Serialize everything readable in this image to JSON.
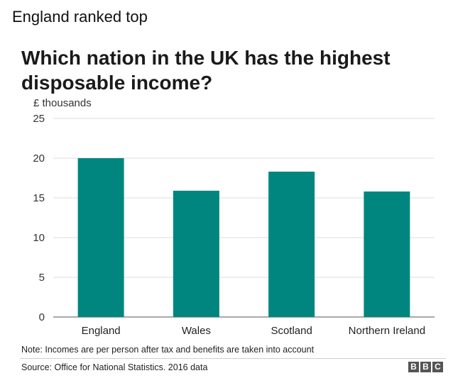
{
  "caption": "England ranked top",
  "chart_data": {
    "type": "bar",
    "title": "Which nation in the UK has the highest disposable income?",
    "ylabel": "£ thousands",
    "xlabel": "",
    "categories": [
      "England",
      "Wales",
      "Scotland",
      "Northern Ireland"
    ],
    "values": [
      20.0,
      15.9,
      18.3,
      15.8
    ],
    "ylim": [
      0,
      25
    ],
    "yticks": [
      "0",
      "5",
      "10",
      "15",
      "20",
      "25"
    ],
    "grid": true,
    "bar_color": "#00867f"
  },
  "note": "Note: Incomes are per person after tax and benefits are taken into account",
  "source": "Source: Office for National Statistics. 2016 data",
  "logo": {
    "letters": [
      "B",
      "B",
      "C"
    ]
  }
}
